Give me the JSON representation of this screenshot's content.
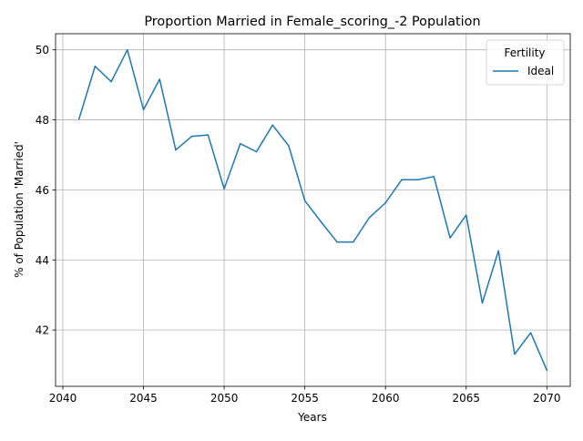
{
  "chart_data": {
    "type": "line",
    "title": "Proportion Married in Female_scoring_-2 Population",
    "xlabel": "Years",
    "ylabel": "% of Population 'Married'",
    "xlim": [
      2039.55,
      2071.45
    ],
    "ylim": [
      40.39,
      50.46
    ],
    "xticks": [
      2040,
      2045,
      2050,
      2055,
      2060,
      2065,
      2070
    ],
    "yticks": [
      42,
      44,
      46,
      48,
      50
    ],
    "grid": true,
    "legend": {
      "title": "Fertility",
      "placement": "top-right"
    },
    "line_color": "#1f77b4",
    "x": [
      2041,
      2042,
      2043,
      2044,
      2045,
      2046,
      2047,
      2048,
      2049,
      2050,
      2051,
      2052,
      2053,
      2054,
      2055,
      2056,
      2057,
      2058,
      2059,
      2060,
      2061,
      2062,
      2063,
      2064,
      2065,
      2066,
      2067,
      2068,
      2069,
      2070
    ],
    "series": [
      {
        "name": "Ideal",
        "values": [
          48.02,
          49.53,
          49.09,
          50.0,
          48.29,
          49.16,
          47.14,
          47.53,
          47.57,
          46.03,
          47.32,
          47.09,
          47.85,
          47.26,
          45.69,
          45.09,
          44.51,
          44.51,
          45.21,
          45.63,
          46.29,
          46.29,
          46.38,
          44.63,
          45.28,
          42.77,
          44.26,
          41.31,
          41.92,
          40.85
        ]
      }
    ]
  }
}
